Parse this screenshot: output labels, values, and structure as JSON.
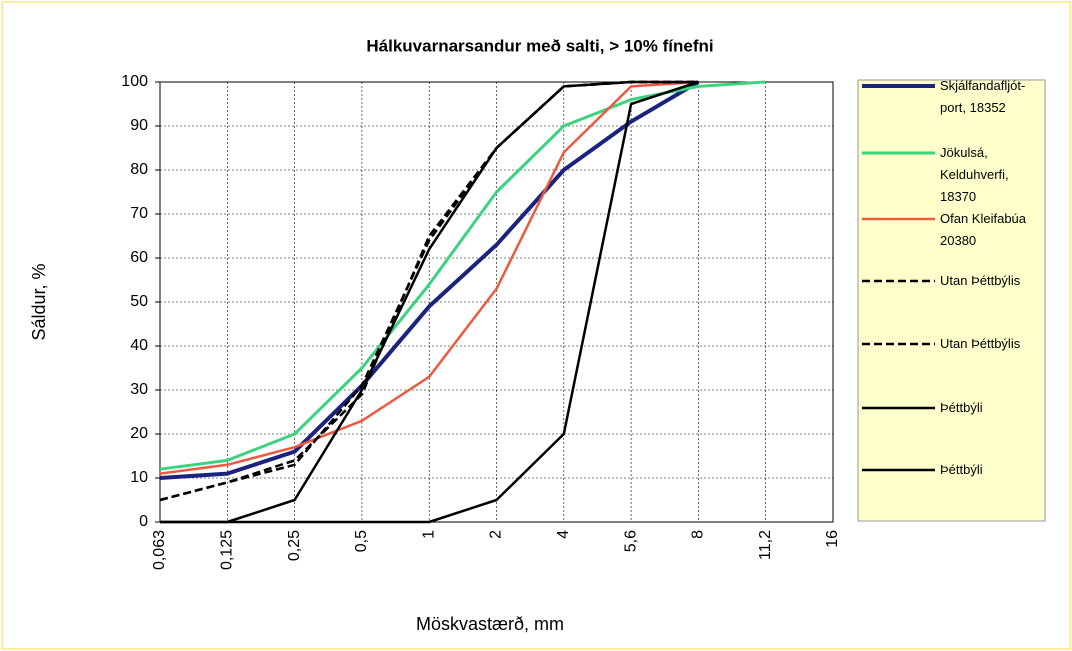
{
  "chart_data": {
    "type": "line",
    "title": "Hálkuvarnarsandur með salti, > 10% fínefni",
    "x_label": "Möskvastærð, mm",
    "y_label": "Sáldur, %",
    "categories": [
      "0,063",
      "0,125",
      "0,25",
      "0,5",
      "1",
      "2",
      "4",
      "5,6",
      "8",
      "11,2",
      "16"
    ],
    "ylim": [
      0,
      100
    ],
    "yticks": [
      0,
      10,
      20,
      30,
      40,
      50,
      60,
      70,
      80,
      90,
      100
    ],
    "grid": true,
    "legend": "right",
    "series": [
      {
        "name": "Skjálfandafljót-port, 18352",
        "color": "#1a237e",
        "values": [
          10,
          11,
          16,
          31,
          49,
          63,
          80,
          91,
          100,
          null,
          null
        ]
      },
      {
        "name": "Jökulsá, Kelduhverfi, 18370",
        "color": "#3cd37f",
        "values": [
          12,
          14,
          20,
          35,
          54,
          75,
          90,
          96,
          99,
          100,
          null
        ]
      },
      {
        "name": "Ofan Kleifabúa 20380",
        "color": "#ee5a3f",
        "values": [
          11,
          13,
          17,
          23,
          33,
          53,
          84,
          99,
          100,
          null,
          null
        ]
      },
      {
        "name": "Utan Þéttbýlis",
        "color": "#000000",
        "dashed": true,
        "values": [
          5,
          9,
          13,
          31,
          64,
          85,
          99,
          100,
          100,
          null,
          null
        ]
      },
      {
        "name": "Utan Þéttbýlis",
        "color": "#000000",
        "dashed": true,
        "values": [
          5,
          9,
          14,
          29,
          65,
          85,
          99,
          100,
          100,
          null,
          null
        ]
      },
      {
        "name": "Þéttbýli",
        "color": "#000000",
        "values": [
          0,
          0,
          5,
          30,
          62,
          85,
          99,
          100,
          100,
          null,
          null
        ]
      },
      {
        "name": "Þéttbýli",
        "color": "#000000",
        "values": [
          0,
          0,
          0,
          0,
          0,
          5,
          20,
          95,
          100,
          null,
          null
        ]
      }
    ]
  }
}
